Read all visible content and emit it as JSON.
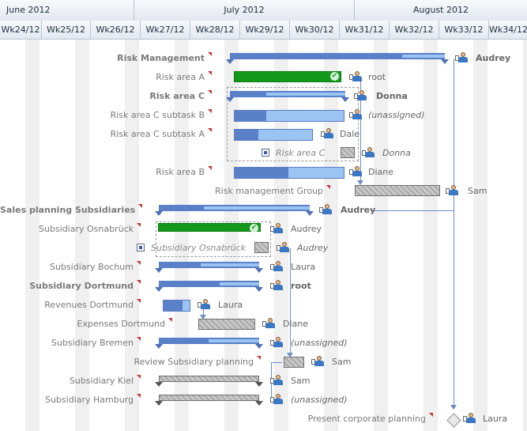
{
  "months": [
    {
      "label": "June 2012"
    },
    {
      "label": "July 2012"
    },
    {
      "label": "August 2012"
    }
  ],
  "weeks": [
    "Wk24/12",
    "Wk25/12",
    "Wk26/12",
    "Wk27/12",
    "Wk28/12",
    "Wk29/12",
    "Wk30/12",
    "Wk31/12",
    "Wk32/12",
    "Wk33/12",
    "Wk34/12"
  ],
  "tasks": [
    {
      "name": "Risk Management",
      "resource": "Audrey"
    },
    {
      "name": "Risk area A",
      "resource": "root"
    },
    {
      "name": "Risk area C",
      "resource": "Donna"
    },
    {
      "name": "Risk area C subtask B",
      "resource": "(unassigned)"
    },
    {
      "name": "Risk area C subtask A",
      "resource": "Dale"
    },
    {
      "name": "Risk area C",
      "resource": "Donna"
    },
    {
      "name": "Risk area B",
      "resource": "Diane"
    },
    {
      "name": "Risk management Group",
      "resource": "Sam"
    },
    {
      "name": "Sales planning Subsidiaries",
      "resource": "Audrey"
    },
    {
      "name": "Subsidiary Osnabrück",
      "resource": "Audrey"
    },
    {
      "name": "Subsidiary Osnabrück",
      "resource": "Audrey"
    },
    {
      "name": "Subsidiary Bochum",
      "resource": "Laura"
    },
    {
      "name": "Subsidiary Dortmund",
      "resource": "root"
    },
    {
      "name": "Revenues Dortmund",
      "resource": "Laura"
    },
    {
      "name": "Expenses Dortmund",
      "resource": "Diane"
    },
    {
      "name": "Subsidiary Bremen",
      "resource": "(unassigned)"
    },
    {
      "name": "Review Subsidiary planning",
      "resource": "Sam"
    },
    {
      "name": "Subsidiary Kiel",
      "resource": "Sam"
    },
    {
      "name": "Subsidiary Hamburg",
      "resource": "(unassigned)"
    },
    {
      "name": "Present corporate planning",
      "resource": "Laura"
    }
  ],
  "colors": {
    "bar": "#9cc4f2",
    "progress": "#5a80c8",
    "done": "#13981c",
    "unscheduled": "#b0b0b0",
    "marker": "#cc3333"
  },
  "icons": {
    "resource": "user-icon",
    "link": "link-icon",
    "done": "checkmark-icon",
    "milestone": "diamond-icon"
  }
}
